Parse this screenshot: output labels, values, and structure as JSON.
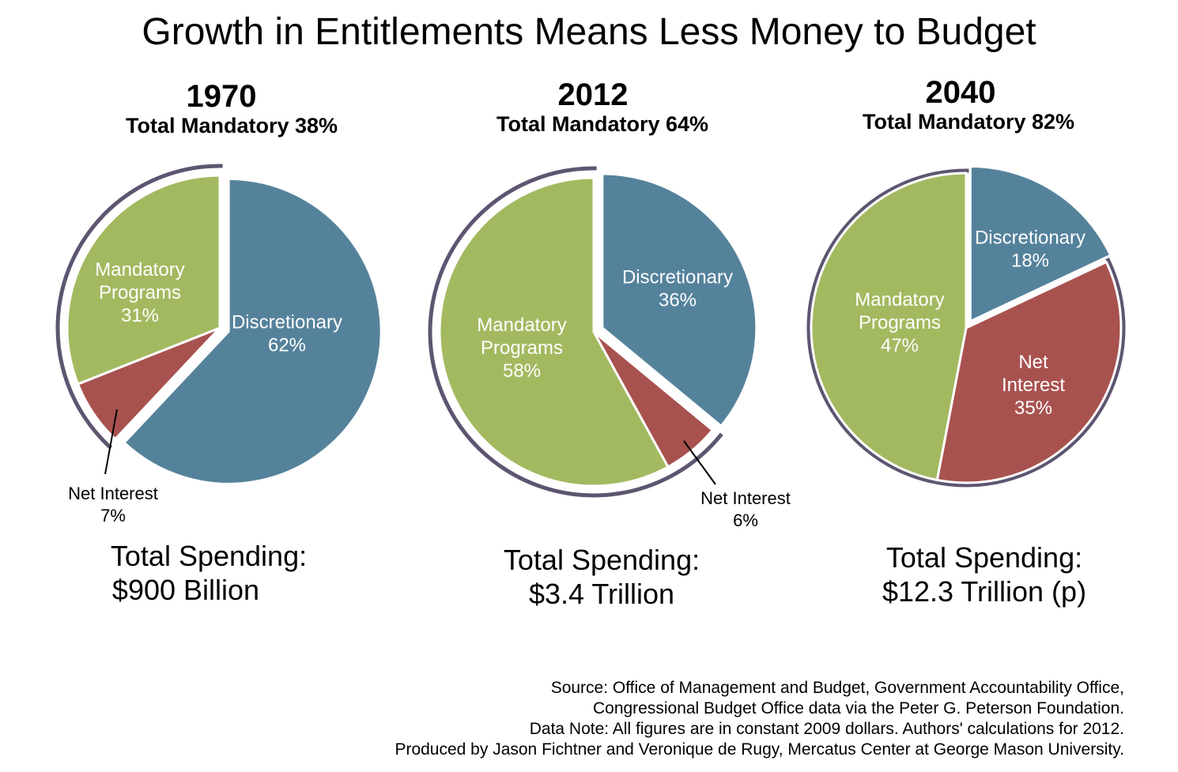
{
  "title": "Growth in Entitlements Means Less Money to Budget",
  "colors": {
    "Discretionary": "#55829b",
    "Mandatory Programs": "#a3b960",
    "Net Interest": "#a8524f",
    "mandatory_arc": "#5e5570",
    "leader": "#000000",
    "label_inside": "#ffffff"
  },
  "panels": [
    {
      "year": "1970",
      "total_mandatory": "Total Mandatory 38%",
      "total_spending": [
        "Total Spending:",
        "$900 Billion"
      ]
    },
    {
      "year": "2012",
      "total_mandatory": "Total Mandatory 64%",
      "total_spending": [
        "Total Spending:",
        "$3.4 Trillion"
      ]
    },
    {
      "year": "2040",
      "total_mandatory": "Total Mandatory 82%",
      "total_spending": [
        "Total Spending:",
        "$12.3 Trillion (p)"
      ]
    }
  ],
  "chart_data": [
    {
      "type": "pie",
      "title": "1970",
      "subtitle": "Total Mandatory 38%",
      "slices": [
        {
          "name": "Discretionary",
          "value": 62,
          "label": [
            "Discretionary",
            "62%"
          ],
          "exploded": true
        },
        {
          "name": "Net Interest",
          "value": 7,
          "label": [
            "Net Interest",
            "7%"
          ],
          "outside": true
        },
        {
          "name": "Mandatory Programs",
          "value": 31,
          "label": [
            "Mandatory",
            "Programs",
            "31%"
          ]
        }
      ],
      "total_spending": "$900 Billion"
    },
    {
      "type": "pie",
      "title": "2012",
      "subtitle": "Total Mandatory 64%",
      "slices": [
        {
          "name": "Discretionary",
          "value": 36,
          "label": [
            "Discretionary",
            "36%"
          ],
          "exploded": true
        },
        {
          "name": "Net Interest",
          "value": 6,
          "label": [
            "Net Interest",
            "6%"
          ],
          "outside": true
        },
        {
          "name": "Mandatory Programs",
          "value": 58,
          "label": [
            "Mandatory",
            "Programs",
            "58%"
          ]
        }
      ],
      "total_spending": "$3.4 Trillion"
    },
    {
      "type": "pie",
      "title": "2040",
      "subtitle": "Total Mandatory 82%",
      "slices": [
        {
          "name": "Discretionary",
          "value": 18,
          "label": [
            "Discretionary",
            "18%"
          ],
          "exploded": true
        },
        {
          "name": "Net Interest",
          "value": 35,
          "label": [
            "Net",
            "Interest",
            "35%"
          ]
        },
        {
          "name": "Mandatory Programs",
          "value": 47,
          "label": [
            "Mandatory",
            "Programs",
            "47%"
          ]
        }
      ],
      "total_spending": "$12.3 Trillion (p)"
    }
  ],
  "source_lines": [
    "Source: Office of Management and Budget, Government Accountability Office,",
    "Congressional Budget Office data via the Peter G. Peterson Foundation.",
    "Data Note: All figures are in constant 2009 dollars. Authors' calculations for 2012.",
    "Produced by Jason Fichtner and Veronique de Rugy, Mercatus Center at George Mason University."
  ]
}
